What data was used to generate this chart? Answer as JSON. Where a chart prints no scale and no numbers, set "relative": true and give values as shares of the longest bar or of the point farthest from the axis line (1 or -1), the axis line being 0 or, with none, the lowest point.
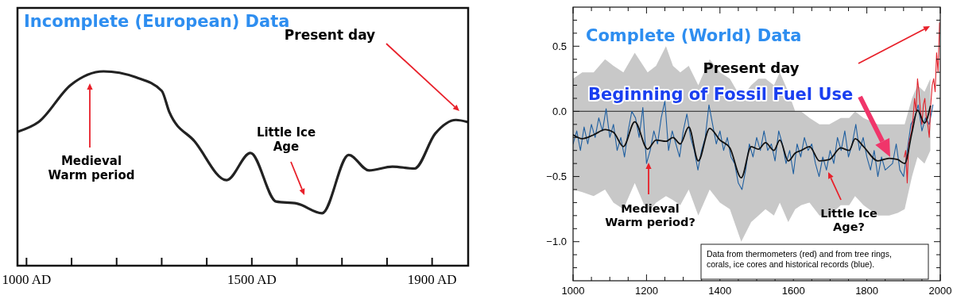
{
  "chart_data": [
    {
      "type": "line",
      "title": "Incomplete (European) Data",
      "relative": true,
      "xlim": [
        980,
        1980
      ],
      "xticks": [
        {
          "value": 1000,
          "label": "1000 AD"
        },
        {
          "value": 1100,
          "label": null
        },
        {
          "value": 1200,
          "label": null
        },
        {
          "value": 1300,
          "label": null
        },
        {
          "value": 1400,
          "label": null
        },
        {
          "value": 1500,
          "label": "1500 AD"
        },
        {
          "value": 1600,
          "label": null
        },
        {
          "value": 1700,
          "label": null
        },
        {
          "value": 1800,
          "label": null
        },
        {
          "value": 1900,
          "label": "1900 AD"
        }
      ],
      "series": [
        {
          "color": "#222222",
          "x": [
            981,
            1027,
            1098,
            1171,
            1242,
            1300,
            1317,
            1373,
            1444,
            1497,
            1554,
            1600,
            1656,
            1715,
            1760,
            1812,
            1861,
            1907,
            1953,
            1978
          ],
          "values": [
            0.69,
            0.74,
            0.93,
            1.0,
            0.97,
            0.9,
            0.79,
            0.64,
            0.44,
            0.58,
            0.33,
            0.32,
            0.27,
            0.57,
            0.49,
            0.51,
            0.5,
            0.68,
            0.75,
            0.74
          ]
        }
      ],
      "annotations": [
        "Present day",
        "Medieval\nWarm period",
        "Little Ice\nAge"
      ]
    },
    {
      "type": "line",
      "title": "Complete (World) Data",
      "xlim": [
        1000,
        2000
      ],
      "ylim": [
        -1.3,
        0.8
      ],
      "xticks": [
        1000,
        {
          "value": 1050,
          "label": null
        },
        {
          "value": 1100,
          "label": null
        },
        {
          "value": 1150,
          "label": null
        },
        1200,
        {
          "value": 1250,
          "label": null
        },
        {
          "value": 1300,
          "label": null
        },
        {
          "value": 1350,
          "label": null
        },
        1400,
        {
          "value": 1450,
          "label": null
        },
        {
          "value": 1500,
          "label": null
        },
        {
          "value": 1550,
          "label": null
        },
        1600,
        {
          "value": 1650,
          "label": null
        },
        {
          "value": 1700,
          "label": null
        },
        {
          "value": 1750,
          "label": null
        },
        1800,
        {
          "value": 1850,
          "label": null
        },
        {
          "value": 1900,
          "label": null
        },
        {
          "value": 1950,
          "label": null
        },
        2000
      ],
      "yticks": [
        {
          "value": -1.2,
          "label": null
        },
        {
          "value": -1.1,
          "label": null
        },
        {
          "value": -1.0,
          "label": "−1.0"
        },
        {
          "value": -0.9,
          "label": null
        },
        {
          "value": -0.8,
          "label": null
        },
        {
          "value": -0.7,
          "label": null
        },
        {
          "value": -0.6,
          "label": null
        },
        {
          "value": -0.5,
          "label": "−0.5"
        },
        {
          "value": -0.4,
          "label": null
        },
        {
          "value": -0.3,
          "label": null
        },
        {
          "value": -0.2,
          "label": null
        },
        {
          "value": -0.1,
          "label": null
        },
        {
          "value": 0,
          "label": "0.0"
        },
        {
          "value": 0.1,
          "label": null
        },
        {
          "value": 0.2,
          "label": null
        },
        {
          "value": 0.3,
          "label": null
        },
        {
          "value": 0.4,
          "label": null
        },
        {
          "value": 0.5,
          "label": "0.5"
        },
        {
          "value": 0.6,
          "label": null
        },
        {
          "value": 0.7,
          "label": null
        }
      ],
      "ref_lines": [
        {
          "axis": "y",
          "value": 0,
          "color": "#444444"
        }
      ],
      "series": [
        {
          "color": "#1f5fa0",
          "x": [
            1000,
            1010,
            1020,
            1030,
            1040,
            1050,
            1060,
            1070,
            1080,
            1090,
            1100,
            1110,
            1120,
            1130,
            1140,
            1150,
            1160,
            1170,
            1180,
            1190,
            1200,
            1210,
            1220,
            1230,
            1240,
            1250,
            1260,
            1270,
            1280,
            1290,
            1300,
            1310,
            1320,
            1330,
            1340,
            1350,
            1360,
            1370,
            1380,
            1390,
            1400,
            1410,
            1420,
            1430,
            1440,
            1450,
            1460,
            1470,
            1480,
            1490,
            1500,
            1510,
            1520,
            1530,
            1540,
            1550,
            1560,
            1570,
            1580,
            1590,
            1600,
            1610,
            1620,
            1630,
            1640,
            1650,
            1660,
            1670,
            1680,
            1690,
            1700,
            1710,
            1720,
            1730,
            1740,
            1750,
            1760,
            1770,
            1780,
            1790,
            1800,
            1810,
            1820,
            1830,
            1840,
            1850,
            1870,
            1880,
            1890,
            1900,
            1910,
            1920,
            1930,
            1940,
            1950,
            1960,
            1970,
            1980
          ],
          "values": [
            -0.25,
            -0.15,
            -0.3,
            -0.12,
            -0.25,
            -0.1,
            -0.2,
            -0.05,
            -0.15,
            0.02,
            -0.2,
            -0.1,
            -0.3,
            -0.2,
            -0.35,
            -0.15,
            0.0,
            -0.05,
            -0.2,
            0.03,
            -0.4,
            -0.3,
            -0.15,
            -0.25,
            -0.05,
            0.08,
            -0.3,
            -0.15,
            -0.25,
            -0.35,
            -0.15,
            -0.02,
            -0.2,
            -0.3,
            -0.45,
            -0.3,
            -0.2,
            0.05,
            -0.1,
            -0.25,
            -0.15,
            -0.3,
            -0.2,
            -0.35,
            -0.4,
            -0.55,
            -0.6,
            -0.45,
            -0.25,
            -0.35,
            -0.2,
            -0.3,
            -0.15,
            -0.3,
            -0.25,
            -0.38,
            -0.15,
            -0.25,
            -0.4,
            -0.3,
            -0.48,
            -0.25,
            -0.35,
            -0.2,
            -0.3,
            -0.25,
            -0.4,
            -0.5,
            -0.35,
            -0.45,
            -0.3,
            -0.4,
            -0.2,
            -0.3,
            -0.15,
            -0.35,
            -0.25,
            -0.1,
            -0.3,
            -0.2,
            -0.35,
            -0.45,
            -0.3,
            -0.5,
            -0.35,
            -0.45,
            -0.4,
            -0.25,
            -0.45,
            -0.5,
            -0.3,
            -0.1,
            -0.05,
            0.05,
            -0.15,
            -0.05,
            -0.1,
            0.05
          ]
        },
        {
          "color": "#e0202a",
          "x": [
            1902,
            1906,
            1910,
            1914,
            1918,
            1922,
            1926,
            1930,
            1934,
            1938,
            1942,
            1946,
            1950,
            1954,
            1958,
            1962,
            1966,
            1970,
            1974,
            1978,
            1982,
            1986,
            1990,
            1994,
            1998
          ],
          "values": [
            -0.35,
            -0.3,
            -0.55,
            -0.25,
            -0.2,
            -0.15,
            -0.05,
            0.1,
            0.0,
            0.25,
            0.15,
            0.0,
            -0.1,
            0.05,
            0.1,
            -0.05,
            -0.1,
            -0.2,
            0.05,
            0.2,
            0.25,
            0.15,
            0.45,
            0.3,
            0.68
          ]
        },
        {
          "color": "#111111",
          "x": [
            1000,
            1025,
            1056,
            1087,
            1110,
            1137,
            1168,
            1203,
            1226,
            1253,
            1272,
            1292,
            1315,
            1341,
            1372,
            1400,
            1427,
            1458,
            1485,
            1505,
            1524,
            1547,
            1563,
            1586,
            1605,
            1621,
            1644,
            1671,
            1698,
            1729,
            1752,
            1768,
            1791,
            1830,
            1861,
            1884,
            1903,
            1923,
            1938,
            1957,
            1973
          ],
          "values": [
            -0.18,
            -0.21,
            -0.18,
            -0.14,
            -0.16,
            -0.27,
            -0.08,
            -0.29,
            -0.22,
            -0.23,
            -0.2,
            -0.25,
            -0.12,
            -0.38,
            -0.13,
            -0.22,
            -0.28,
            -0.51,
            -0.27,
            -0.29,
            -0.24,
            -0.3,
            -0.22,
            -0.38,
            -0.32,
            -0.3,
            -0.27,
            -0.38,
            -0.37,
            -0.28,
            -0.3,
            -0.21,
            -0.27,
            -0.38,
            -0.36,
            -0.37,
            -0.4,
            -0.16,
            0.01,
            -0.09,
            0.04
          ],
          "lower": [
            -0.6,
            -0.62,
            -0.65,
            -0.6,
            -0.7,
            -0.75,
            -0.55,
            -0.78,
            -0.7,
            -0.65,
            -0.68,
            -0.72,
            -0.6,
            -0.8,
            -0.6,
            -0.7,
            -0.75,
            -1.0,
            -0.85,
            -0.8,
            -0.75,
            -0.8,
            -0.7,
            -0.85,
            -0.75,
            -0.72,
            -0.7,
            -0.8,
            -0.8,
            -0.72,
            -0.72,
            -0.65,
            -0.72,
            -0.8,
            -0.8,
            -0.78,
            -0.75,
            -0.5,
            -0.35,
            -0.4,
            -0.3
          ],
          "upper": [
            0.25,
            0.3,
            0.3,
            0.4,
            0.35,
            0.3,
            0.45,
            0.3,
            0.35,
            0.5,
            0.35,
            0.3,
            0.35,
            0.2,
            0.4,
            0.3,
            0.25,
            0.1,
            0.2,
            0.25,
            0.25,
            0.2,
            0.3,
            0.15,
            0.0,
            0.0,
            -0.05,
            -0.1,
            -0.1,
            -0.05,
            -0.05,
            0.0,
            -0.05,
            -0.1,
            -0.1,
            -0.1,
            -0.1,
            0.1,
            0.2,
            0.15,
            0.25
          ]
        }
      ],
      "annotations": [
        "Present day",
        "Beginning of Fossil Fuel Use",
        "Medieval\nWarm period?",
        "Little Ice\nAge?",
        "Data from thermometers (red) and from tree rings,\ncorals, ice cores and historical records (blue)."
      ]
    }
  ]
}
